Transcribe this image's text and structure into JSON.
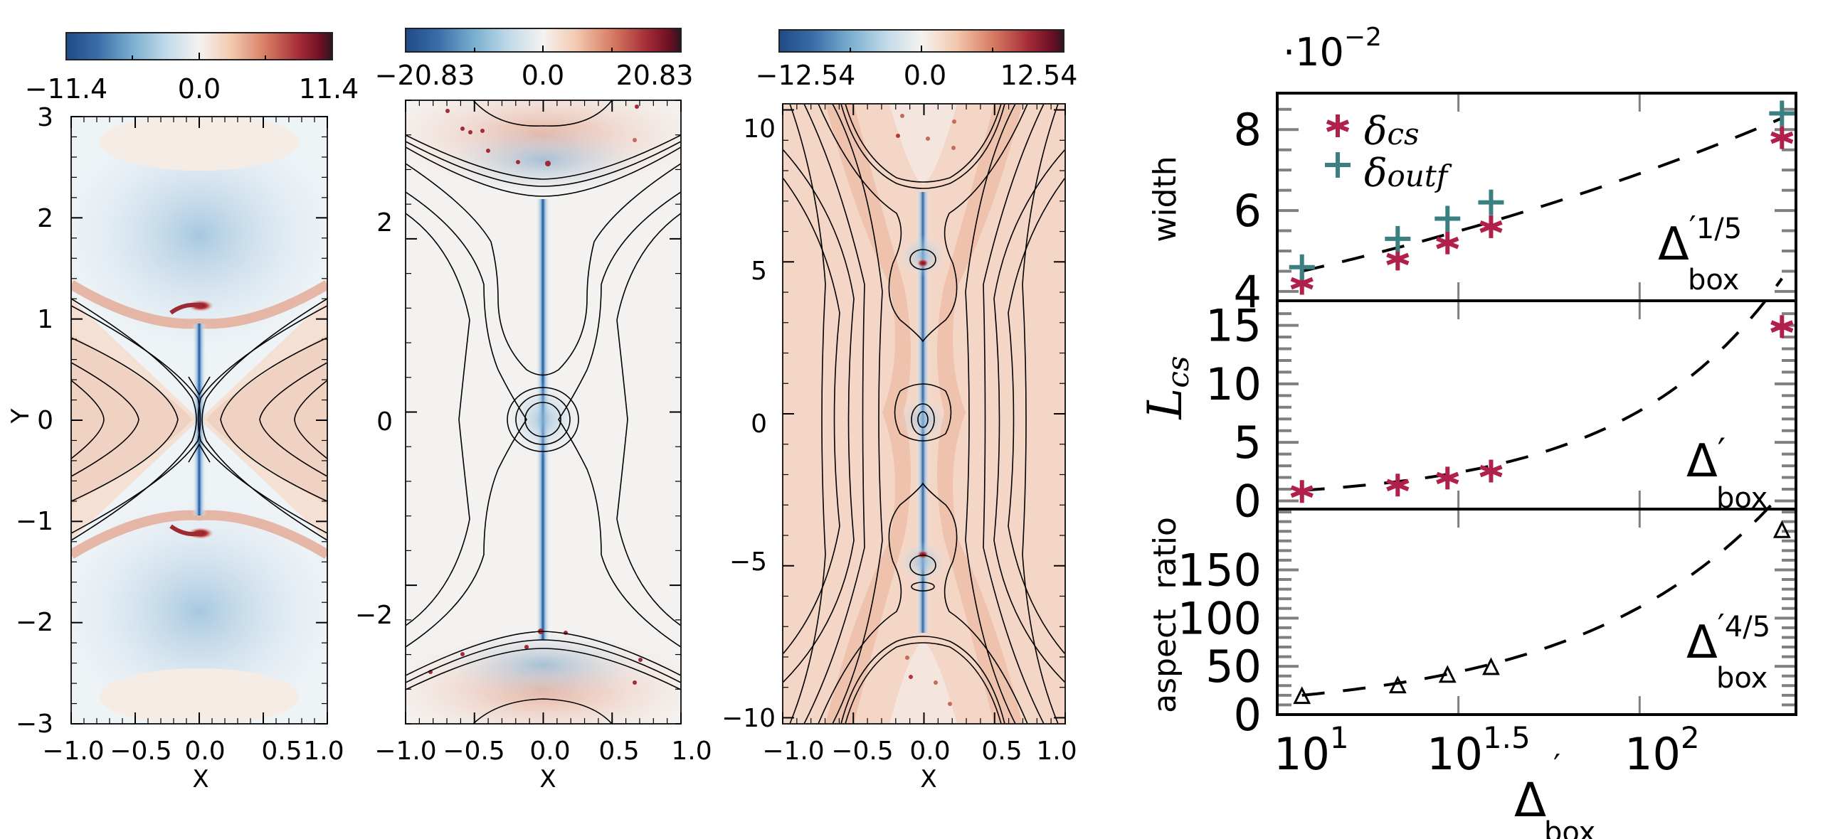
{
  "figure": {
    "panels": [
      {
        "id": "panel-1",
        "colorbar": {
          "min_label": "−11.4",
          "mid_label": "0.0",
          "max_label": "11.4",
          "min": -11.4,
          "max": 11.4,
          "colormap": "RdBu_r"
        },
        "xlabel": "X",
        "ylabel": "Y",
        "xlim": [
          -1.0,
          1.0
        ],
        "ylim": [
          -3,
          3
        ],
        "xticks": [
          "−1.0",
          "−0.5",
          "0.0",
          "0.5",
          "1.0"
        ],
        "yticks": [
          "3",
          "2",
          "1",
          "0",
          "−1",
          "−2",
          "−3"
        ],
        "ytick_values": [
          3,
          2,
          1,
          0,
          -1,
          -2,
          -3
        ],
        "xtick_values": [
          -1.0,
          -0.5,
          0.0,
          0.5,
          1.0
        ]
      },
      {
        "id": "panel-2",
        "colorbar": {
          "min_label": "−20.83",
          "mid_label": "0.0",
          "max_label": "20.83",
          "min": -20.83,
          "max": 20.83,
          "colormap": "RdBu_r"
        },
        "xlabel": "X",
        "ylabel": "",
        "xlim": [
          -1.0,
          1.0
        ],
        "ylim": [
          -3.6,
          3.6
        ],
        "xticks": [
          "−1.0",
          "−0.5",
          "0.0",
          "0.5",
          "1.0"
        ],
        "yticks": [
          "2",
          "0",
          "−2"
        ],
        "ytick_values": [
          2,
          0,
          -2
        ],
        "xtick_values": [
          -1.0,
          -0.5,
          0.0,
          0.5,
          1.0
        ]
      },
      {
        "id": "panel-3",
        "colorbar": {
          "min_label": "−12.54",
          "mid_label": "0.0",
          "max_label": "12.54",
          "min": -12.54,
          "max": 12.54,
          "colormap": "RdBu_r"
        },
        "xlabel": "X",
        "ylabel": "",
        "xlim": [
          -1.0,
          1.0
        ],
        "ylim": [
          -10.2,
          10.2
        ],
        "xticks": [
          "−1.0",
          "−0.5",
          "0.0",
          "0.5",
          "1.0"
        ],
        "yticks": [
          "10",
          "5",
          "0",
          "−5",
          "−10"
        ],
        "ytick_values": [
          10,
          5,
          0,
          -5,
          -10
        ],
        "xtick_values": [
          -1.0,
          -0.5,
          0.0,
          0.5,
          1.0
        ]
      }
    ]
  },
  "chart_data": [
    {
      "type": "heatmap",
      "title": "",
      "xlabel": "X",
      "ylabel": "Y",
      "xlim": [
        -1.0,
        1.0
      ],
      "ylim": [
        -3,
        3
      ],
      "colorbar_range": [
        -11.4,
        11.4
      ],
      "colorbar_ticks": [
        -11.4,
        0.0,
        11.4
      ],
      "overlay": "black field-line contours (X-point at origin)"
    },
    {
      "type": "heatmap",
      "title": "",
      "xlabel": "X",
      "ylabel": "",
      "xlim": [
        -1.0,
        1.0
      ],
      "ylim": [
        -3.6,
        3.6
      ],
      "colorbar_range": [
        -20.83,
        20.83
      ],
      "colorbar_ticks": [
        -20.83,
        0.0,
        20.83
      ],
      "overlay": "black field-line contours (plasmoid at origin)"
    },
    {
      "type": "heatmap",
      "title": "",
      "xlabel": "X",
      "ylabel": "",
      "xlim": [
        -1.0,
        1.0
      ],
      "ylim": [
        -10.2,
        10.2
      ],
      "colorbar_range": [
        -12.54,
        12.54
      ],
      "colorbar_ticks": [
        -12.54,
        0.0,
        12.54
      ],
      "overlay": "black field-line contours (plasmoid chain)"
    },
    {
      "type": "scatter",
      "subplot": "width",
      "ylabel": "width",
      "y_scale_note": "·10⁻²",
      "multiplier_label": "·10",
      "multiplier_exp": "−2",
      "xscale": "log",
      "xlim": [
        10,
        270
      ],
      "ylim": [
        3.77,
        8.9
      ],
      "yticks": [
        4,
        6,
        8
      ],
      "ytick_labels": [
        "4",
        "6",
        "8"
      ],
      "series": [
        {
          "name": "δcs",
          "label_main": "δ",
          "label_sub": "cs",
          "marker": "asterisk",
          "color": "#b0204a",
          "x": [
            11.7,
            21.5,
            29.5,
            38.9,
            247
          ],
          "y": [
            4.2,
            4.8,
            5.2,
            5.6,
            7.8
          ]
        },
        {
          "name": "δoutf",
          "label_main": "δ",
          "label_sub": "outf",
          "marker": "plus",
          "color": "#3a8080",
          "x": [
            11.7,
            21.5,
            29.5,
            38.9,
            247
          ],
          "y": [
            4.6,
            5.3,
            5.8,
            6.2,
            8.4
          ]
        }
      ],
      "fit": {
        "exponent": 0.2,
        "anchor_x": 11.7,
        "anchor_y": 4.5,
        "label_main": "Δ",
        "label_prime": "′",
        "label_exp": "1/5",
        "label_sub": "box"
      }
    },
    {
      "type": "scatter",
      "subplot": "L_cs",
      "ylabel": "L",
      "ylabel_sub": "cs",
      "xscale": "log",
      "xlim": [
        10,
        270
      ],
      "ylim": [
        -0.7,
        17.1
      ],
      "yticks": [
        0,
        5,
        10,
        15
      ],
      "ytick_labels": [
        "0",
        "5",
        "10",
        "15"
      ],
      "series": [
        {
          "name": "L_cs",
          "marker": "asterisk",
          "color": "#b0204a",
          "x": [
            11.7,
            21.5,
            29.5,
            38.9,
            247
          ],
          "y": [
            0.8,
            1.35,
            1.95,
            2.55,
            14.9
          ]
        }
      ],
      "fit": {
        "exponent": 1.0,
        "anchor_x": 11.7,
        "anchor_y": 0.9,
        "label_main": "Δ",
        "label_prime": "′",
        "label_exp": "",
        "label_sub": "box"
      }
    },
    {
      "type": "scatter",
      "subplot": "aspect ratio",
      "ylabel": "aspect  ratio",
      "xscale": "log",
      "xlim": [
        10,
        270
      ],
      "ylim": [
        0,
        213
      ],
      "yticks": [
        0,
        50,
        100,
        150
      ],
      "ytick_labels": [
        "0",
        "50",
        "100",
        "150"
      ],
      "series": [
        {
          "name": "aspect ratio",
          "marker": "triangle-open",
          "color": "#000000",
          "x": [
            11.7,
            21.5,
            29.5,
            38.9,
            247
          ],
          "y": [
            18,
            29,
            40,
            48,
            190
          ]
        }
      ],
      "fit": {
        "exponent": 0.8,
        "anchor_x": 11.7,
        "anchor_y": 20,
        "label_main": "Δ",
        "label_prime": "′",
        "label_exp": "4/5",
        "label_sub": "box"
      }
    }
  ],
  "shared_x_axis": {
    "label_main": "Δ",
    "label_prime": "′",
    "label_sub": "box",
    "ticks": [
      {
        "value": 10,
        "base": "10",
        "exp": "1"
      },
      {
        "value": 31.62,
        "base": "10",
        "exp": "1.5"
      },
      {
        "value": 100,
        "base": "10",
        "exp": "2"
      }
    ]
  }
}
